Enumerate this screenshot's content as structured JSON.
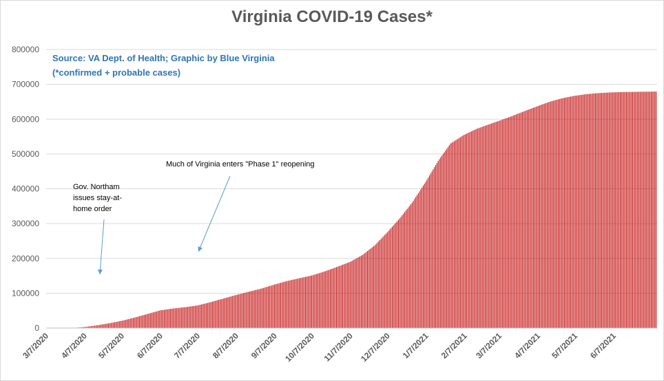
{
  "chart_data": {
    "type": "bar",
    "title": "Virginia COVID-19 Cases*",
    "subtitle_lines": [
      "Source: VA Dept. of Health; Graphic by Blue Virginia",
      "(*confirmed + probable cases)"
    ],
    "xlabel": "",
    "ylabel": "",
    "ylim": [
      0,
      800000
    ],
    "y_ticks": [
      0,
      100000,
      200000,
      300000,
      400000,
      500000,
      600000,
      700000,
      800000
    ],
    "y_tick_labels": [
      "0",
      "100000",
      "200000",
      "300000",
      "400000",
      "500000",
      "600000",
      "700000",
      "800000"
    ],
    "x_tick_labels": [
      "3/7/2020",
      "4/7/2020",
      "5/7/2020",
      "6/7/2020",
      "7/7/2020",
      "8/7/2020",
      "9/7/2020",
      "10/7/2020",
      "11/7/2020",
      "12/7/2020",
      "1/7/2021",
      "2/7/2021",
      "3/7/2021",
      "4/7/2021",
      "5/7/2021",
      "6/7/2021"
    ],
    "x_range": [
      "3/7/2020",
      "7/12/2021"
    ],
    "grid": true,
    "legend": "none",
    "bar_color": "#c00000",
    "series": [
      {
        "x": [
          "3/7/2020",
          "3/17/2020",
          "3/27/2020",
          "4/7/2020",
          "4/17/2020",
          "4/27/2020",
          "5/7/2020",
          "5/17/2020",
          "5/27/2020",
          "6/7/2020",
          "6/17/2020",
          "6/27/2020",
          "7/7/2020",
          "7/17/2020",
          "7/27/2020",
          "8/7/2020",
          "8/17/2020",
          "8/27/2020",
          "9/7/2020",
          "9/17/2020",
          "9/27/2020",
          "10/7/2020",
          "10/17/2020",
          "10/27/2020",
          "11/7/2020",
          "11/17/2020",
          "11/27/2020",
          "12/7/2020",
          "12/17/2020",
          "12/27/2020",
          "1/7/2021",
          "1/17/2021",
          "1/27/2021",
          "2/7/2021",
          "2/17/2021",
          "2/27/2021",
          "3/7/2021",
          "3/17/2021",
          "3/27/2021",
          "4/7/2021",
          "4/17/2021",
          "4/27/2021",
          "5/7/2021",
          "5/17/2021",
          "5/27/2021",
          "6/7/2021",
          "6/17/2021",
          "6/27/2021",
          "7/7/2021",
          "7/12/2021"
        ],
        "values": [
          0,
          0,
          0,
          3000,
          8000,
          14000,
          21000,
          30000,
          40000,
          51000,
          56000,
          60000,
          65000,
          74000,
          84000,
          95000,
          104000,
          113000,
          125000,
          135000,
          143000,
          151000,
          162000,
          175000,
          190000,
          210000,
          238000,
          275000,
          315000,
          360000,
          420000,
          480000,
          530000,
          555000,
          572000,
          585000,
          595000,
          608000,
          622000,
          637000,
          650000,
          660000,
          667000,
          672000,
          675000,
          677000,
          678000,
          678500,
          679000,
          679500
        ]
      }
    ],
    "annotations": [
      {
        "text_lines": [
          "Gov. Northam",
          "issues stay-at-",
          "home order"
        ],
        "points_to_date": "3/30/2020"
      },
      {
        "text_lines": [
          "Much of Virginia enters \"Phase 1\" reopening"
        ],
        "points_to_date": "5/15/2020"
      }
    ],
    "arrow_color": "#5b9bd5",
    "grid_color": "#d9d9d9"
  }
}
